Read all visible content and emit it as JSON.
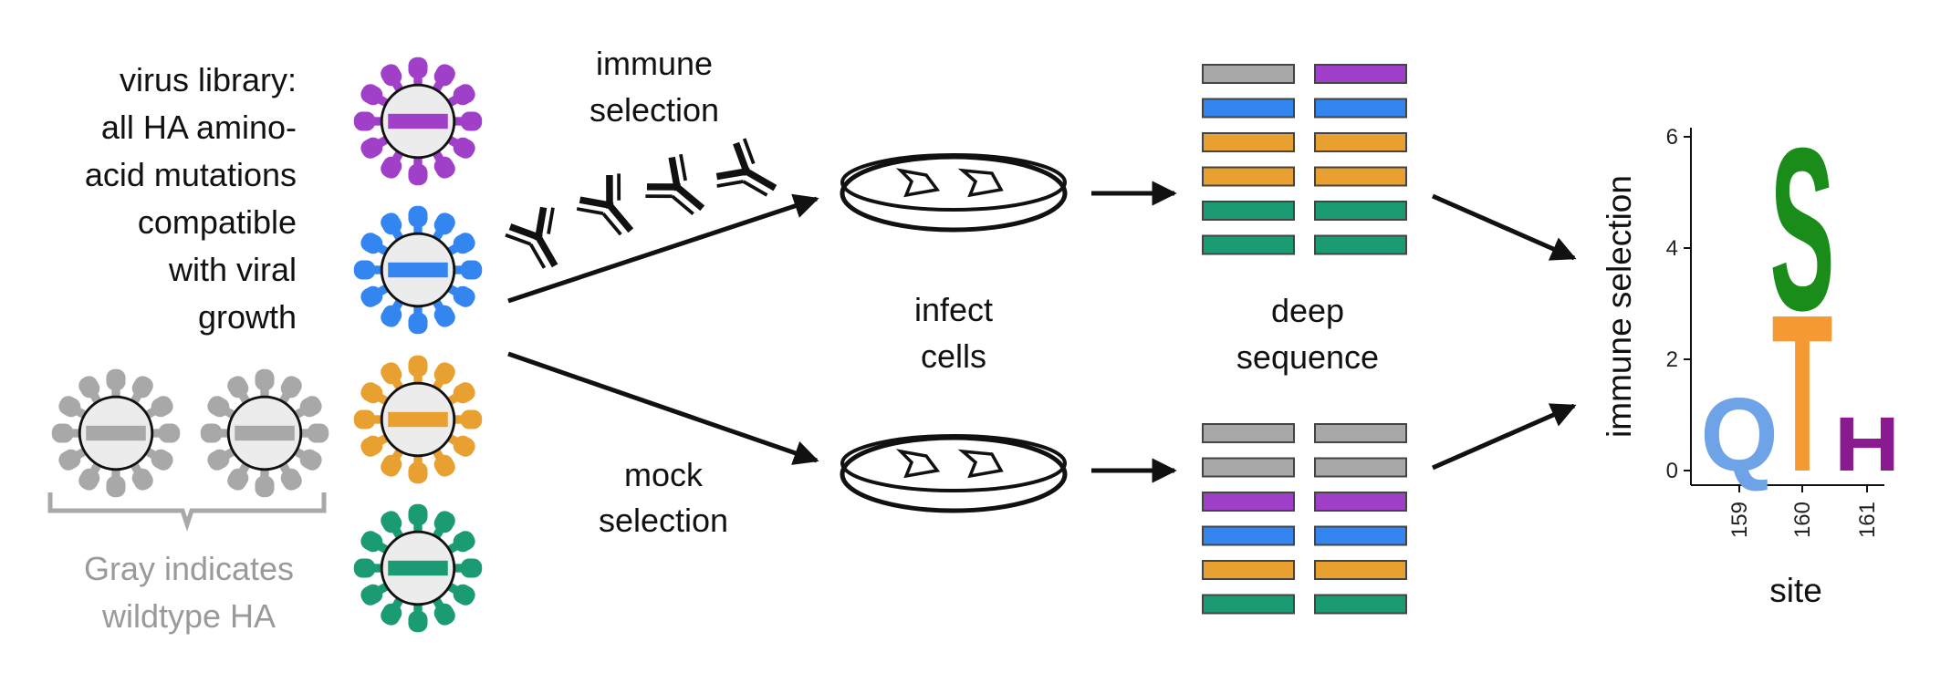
{
  "library_text": [
    "virus library:",
    "all HA amino-",
    "acid mutations",
    "compatible",
    "with viral",
    "growth"
  ],
  "gray_note": [
    "Gray indicates",
    "wildtype HA"
  ],
  "immune_selection_text": [
    "immune",
    "selection"
  ],
  "mock_selection_text": [
    "mock",
    "selection"
  ],
  "infect_cells_text": [
    "infect",
    "cells"
  ],
  "deep_sequence_text": [
    "deep",
    "sequence"
  ],
  "colors": {
    "purple": "#a040c8",
    "blue": "#3385f0",
    "orange": "#e8a030",
    "green": "#1a9b73",
    "gray": "#a8a8a8",
    "logo_Q": "#6fa3e8",
    "logo_T": "#f59a33",
    "logo_S": "#1a8c1a",
    "logo_H": "#8a1a8f"
  },
  "viruses": {
    "colored": [
      "purple",
      "blue",
      "orange",
      "green"
    ],
    "wildtype": [
      "gray",
      "gray"
    ]
  },
  "reads": {
    "immune": [
      [
        "gray",
        "purple"
      ],
      [
        "blue",
        "blue"
      ],
      [
        "orange",
        "orange"
      ],
      [
        "orange",
        "orange"
      ],
      [
        "green",
        "green"
      ],
      [
        "green",
        "green"
      ]
    ],
    "mock": [
      [
        "gray",
        "gray"
      ],
      [
        "gray",
        "gray"
      ],
      [
        "purple",
        "purple"
      ],
      [
        "blue",
        "blue"
      ],
      [
        "orange",
        "orange"
      ],
      [
        "green",
        "green"
      ]
    ]
  },
  "chart_data": {
    "type": "bar",
    "ylabel": "immune selection",
    "xlabel": "site",
    "ylim": [
      0,
      6.3
    ],
    "yticks": [
      0,
      2,
      4,
      6
    ],
    "categories": [
      "159",
      "160",
      "161"
    ],
    "logo": [
      {
        "site": "159",
        "letters": [
          {
            "letter": "Q",
            "value": 1.35,
            "color": "logo_Q"
          }
        ]
      },
      {
        "site": "160",
        "letters": [
          {
            "letter": "T",
            "value": 2.9,
            "color": "logo_T"
          },
          {
            "letter": "S",
            "value": 3.0,
            "color": "logo_S"
          }
        ]
      },
      {
        "site": "161",
        "letters": [
          {
            "letter": "H",
            "value": 1.0,
            "color": "logo_H"
          }
        ]
      }
    ]
  }
}
